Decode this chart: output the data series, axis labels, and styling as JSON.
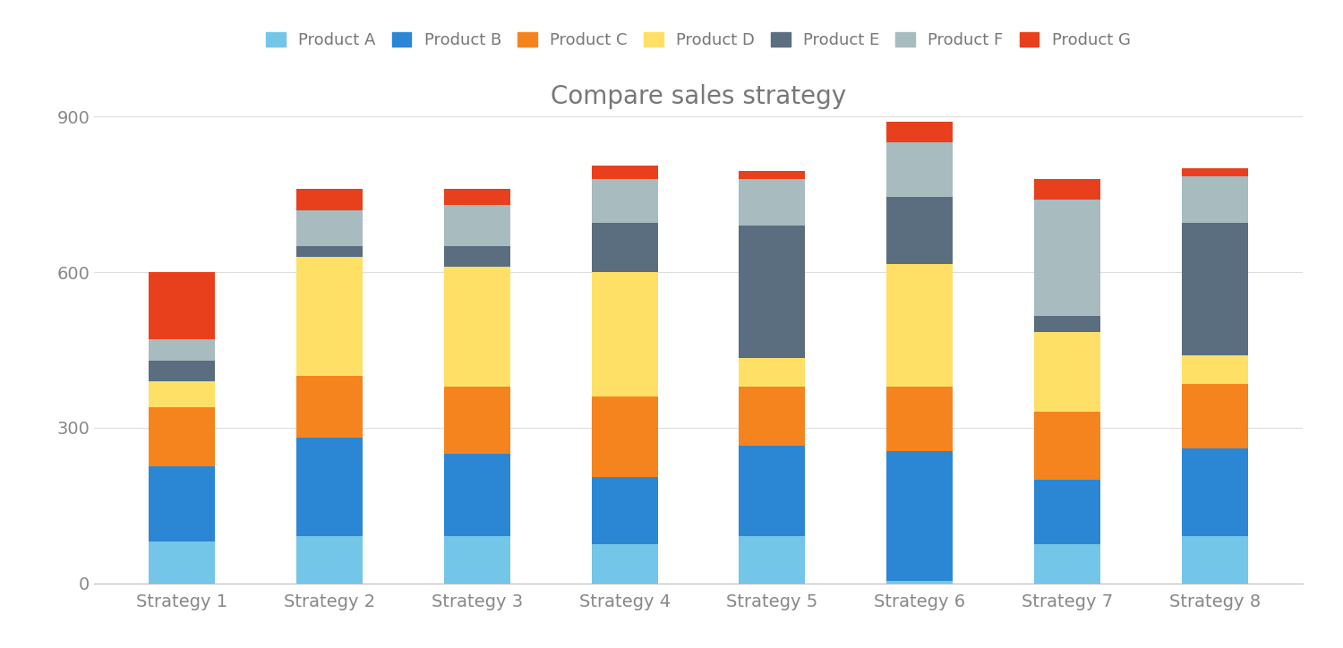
{
  "title": "Compare sales strategy",
  "categories": [
    "Strategy 1",
    "Strategy 2",
    "Strategy 3",
    "Strategy 4",
    "Strategy 5",
    "Strategy 6",
    "Strategy 7",
    "Strategy 8"
  ],
  "products": [
    "Product A",
    "Product B",
    "Product C",
    "Product D",
    "Product E",
    "Product F",
    "Product G"
  ],
  "colors": [
    "#73C6E8",
    "#2B87D3",
    "#F5841F",
    "#FFE066",
    "#5A6E7F",
    "#A8BBBF",
    "#E8401C"
  ],
  "values": {
    "Product A": [
      80,
      90,
      90,
      75,
      90,
      5,
      75,
      90
    ],
    "Product B": [
      145,
      190,
      160,
      130,
      175,
      250,
      125,
      170
    ],
    "Product C": [
      115,
      120,
      130,
      155,
      115,
      125,
      130,
      125
    ],
    "Product D": [
      50,
      230,
      230,
      240,
      55,
      235,
      155,
      55
    ],
    "Product E": [
      40,
      20,
      40,
      95,
      255,
      130,
      30,
      255
    ],
    "Product F": [
      40,
      70,
      80,
      85,
      90,
      105,
      225,
      90
    ],
    "Product G": [
      130,
      40,
      30,
      25,
      15,
      40,
      40,
      15
    ]
  },
  "ylim": [
    0,
    900
  ],
  "yticks": [
    0,
    300,
    600,
    900
  ],
  "background_color": "#FFFFFF",
  "bar_width": 0.45,
  "title_fontsize": 20,
  "legend_fontsize": 13,
  "tick_fontsize": 14
}
